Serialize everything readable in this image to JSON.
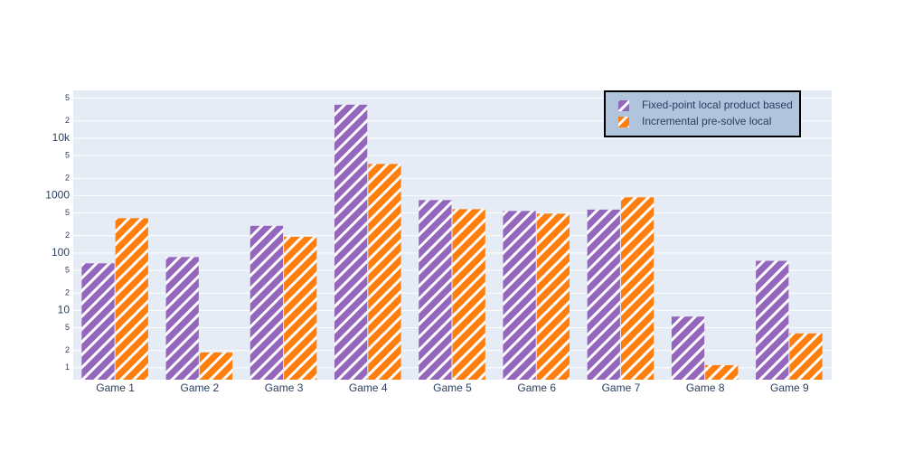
{
  "chart_data": {
    "type": "bar",
    "categories": [
      "Game 1",
      "Game 2",
      "Game 3",
      "Game 4",
      "Game 5",
      "Game 6",
      "Game 7",
      "Game 8",
      "Game 9"
    ],
    "series": [
      {
        "name": "Fixed-point local product based",
        "color": "#9467bd",
        "values": [
          66,
          85,
          297,
          38300,
          834,
          540,
          570,
          7.8,
          73
        ]
      },
      {
        "name": "Incremental pre-solve local",
        "color": "#ff7f0e",
        "values": [
          404,
          1.85,
          192,
          3560,
          580,
          484,
          932,
          1.11,
          3.97
        ]
      }
    ],
    "log_scale": true,
    "ylim": [
      0.62,
      68000
    ],
    "yticks": [
      1,
      {
        "value": 2,
        "label": "2"
      },
      {
        "value": 5,
        "label": "5"
      },
      10,
      {
        "value": 20,
        "label": "2"
      },
      {
        "value": 50,
        "label": "5"
      },
      100,
      {
        "value": 200,
        "label": "2"
      },
      {
        "value": 500,
        "label": "5"
      },
      1000,
      {
        "value": 2000,
        "label": "2"
      },
      {
        "value": 5000,
        "label": "5"
      },
      {
        "value": 10000,
        "label": "10k"
      },
      {
        "value": 20000,
        "label": "2"
      },
      {
        "value": 50000,
        "label": "5"
      }
    ],
    "grid": true,
    "legend": "top-right"
  }
}
